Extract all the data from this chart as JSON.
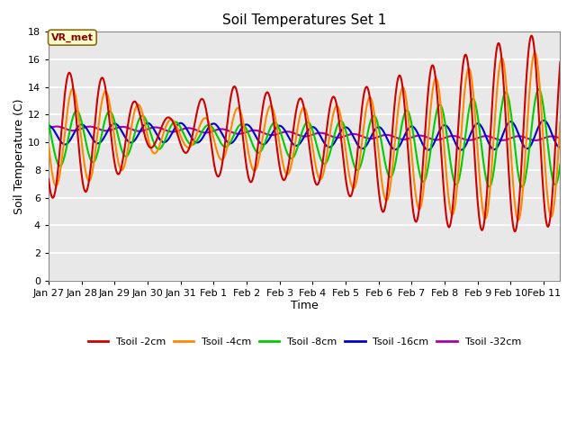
{
  "title": "Soil Temperatures Set 1",
  "xlabel": "Time",
  "ylabel": "Soil Temperature (C)",
  "ylim": [
    0,
    18
  ],
  "yticks": [
    0,
    2,
    4,
    6,
    8,
    10,
    12,
    14,
    16,
    18
  ],
  "xtick_labels": [
    "Jan 27",
    "Jan 28",
    "Jan 29",
    "Jan 30",
    "Jan 31",
    "Feb 1",
    "Feb 2",
    "Feb 3",
    "Feb 4",
    "Feb 5",
    "Feb 6",
    "Feb 7",
    "Feb 8",
    "Feb 9",
    "Feb 10",
    "Feb 11"
  ],
  "xtick_positions": [
    0,
    1,
    2,
    3,
    4,
    5,
    6,
    7,
    8,
    9,
    10,
    11,
    12,
    13,
    14,
    15
  ],
  "colors": {
    "Tsoil -2cm": "#cc0000",
    "Tsoil -4cm": "#ff8800",
    "Tsoil -8cm": "#00cc00",
    "Tsoil -16cm": "#0000cc",
    "Tsoil -32cm": "#aa00aa"
  },
  "annotation_text": "VR_met",
  "bg_color": "#ffffff",
  "plot_bg_color": "#e8e8e8",
  "grid_color": "#ffffff",
  "title_fontsize": 11,
  "axis_label_fontsize": 9,
  "tick_fontsize": 8
}
